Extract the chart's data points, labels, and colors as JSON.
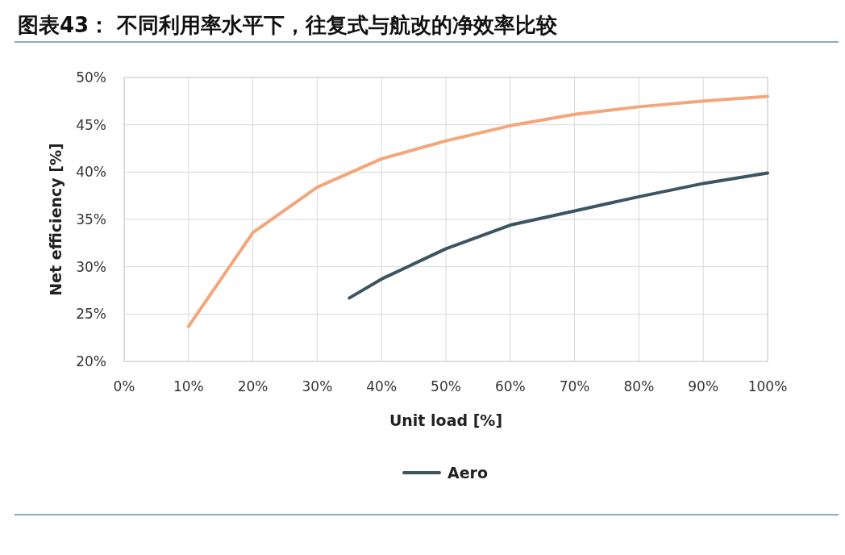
{
  "chart_data": {
    "type": "line",
    "title": "图表43：  不同利用率水平下，往复式与航改的净效率比较",
    "xlabel": "Unit load [%]",
    "ylabel": "Net efficiency [%]",
    "xlim": [
      0,
      100
    ],
    "ylim": [
      20,
      50
    ],
    "xticks": [
      {
        "value": 0,
        "label": "0%"
      },
      {
        "value": 10,
        "label": "10%"
      },
      {
        "value": 20,
        "label": "20%"
      },
      {
        "value": 30,
        "label": "30%"
      },
      {
        "value": 40,
        "label": "40%"
      },
      {
        "value": 50,
        "label": "50%"
      },
      {
        "value": 60,
        "label": "60%"
      },
      {
        "value": 70,
        "label": "70%"
      },
      {
        "value": 80,
        "label": "80%"
      },
      {
        "value": 90,
        "label": "90%"
      },
      {
        "value": 100,
        "label": "100%"
      }
    ],
    "yticks": [
      {
        "value": 20,
        "label": "20%"
      },
      {
        "value": 25,
        "label": "25%"
      },
      {
        "value": 30,
        "label": "30%"
      },
      {
        "value": 35,
        "label": "35%"
      },
      {
        "value": 40,
        "label": "40%"
      },
      {
        "value": 45,
        "label": "45%"
      },
      {
        "value": 50,
        "label": "50%"
      }
    ],
    "grid": true,
    "legend": "bottom",
    "marker": "none",
    "line_style": "solid",
    "series": [
      {
        "color": "#f4a57a",
        "x": [
          10,
          20,
          30,
          40,
          50,
          60,
          70,
          80,
          90,
          100
        ],
        "values": [
          23.7,
          33.6,
          38.4,
          41.4,
          43.3,
          44.9,
          46.1,
          46.9,
          47.5,
          48.0
        ]
      },
      {
        "name": "Aero",
        "color": "#3d5462",
        "x": [
          35,
          40,
          50,
          60,
          70,
          80,
          90,
          100
        ],
        "values": [
          26.7,
          28.7,
          31.9,
          34.4,
          35.9,
          37.4,
          38.8,
          39.9
        ]
      }
    ]
  }
}
